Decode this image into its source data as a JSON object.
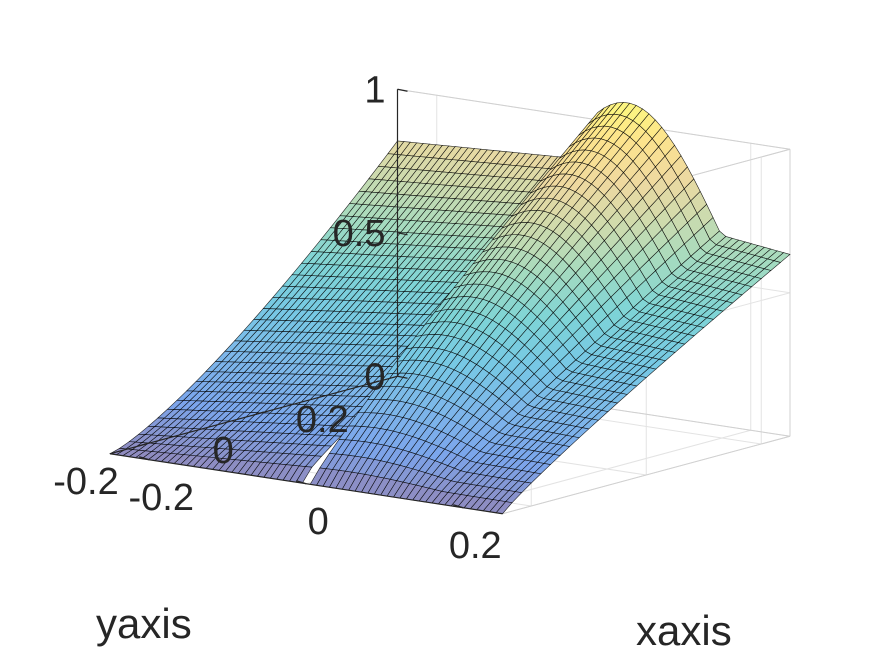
{
  "chart_data": {
    "type": "surface",
    "title": "",
    "xlabel": "xaxis",
    "ylabel": "yaxis",
    "zlabel": "",
    "xlim": [
      -0.25,
      0.25
    ],
    "ylim": [
      -0.25,
      0.25
    ],
    "zlim": [
      0,
      1
    ],
    "xticks": [
      {
        "value": -0.2,
        "label": "-0.2"
      },
      {
        "value": 0,
        "label": "0"
      },
      {
        "value": 0.2,
        "label": "0.2"
      }
    ],
    "yticks": [
      {
        "value": -0.2,
        "label": "-0.2"
      },
      {
        "value": 0,
        "label": "0"
      },
      {
        "value": 0.2,
        "label": "0.2"
      }
    ],
    "zticks": [
      {
        "value": 0,
        "label": "0"
      },
      {
        "value": 0.5,
        "label": "0.5"
      },
      {
        "value": 1,
        "label": "1"
      }
    ],
    "grid": true,
    "colormap": "parula",
    "face_alpha": 0.55,
    "edge_color": "#000000",
    "surface": {
      "description_of_shape": "saddle-like surface with a discontinuity along x=0",
      "corner_values": [
        {
          "x": -0.25,
          "y": 0.25,
          "z": 0.82
        },
        {
          "x": 0.25,
          "y": 0.25,
          "z": 0.72
        },
        {
          "x": -0.25,
          "y": -0.25,
          "z": 0.0
        },
        {
          "x": 0.25,
          "y": -0.25,
          "z": 0.0
        }
      ],
      "ridge_peak": {
        "x": 0.0,
        "y": 0.25,
        "z": 1.1
      },
      "discontinuity_x": 0.0
    }
  }
}
